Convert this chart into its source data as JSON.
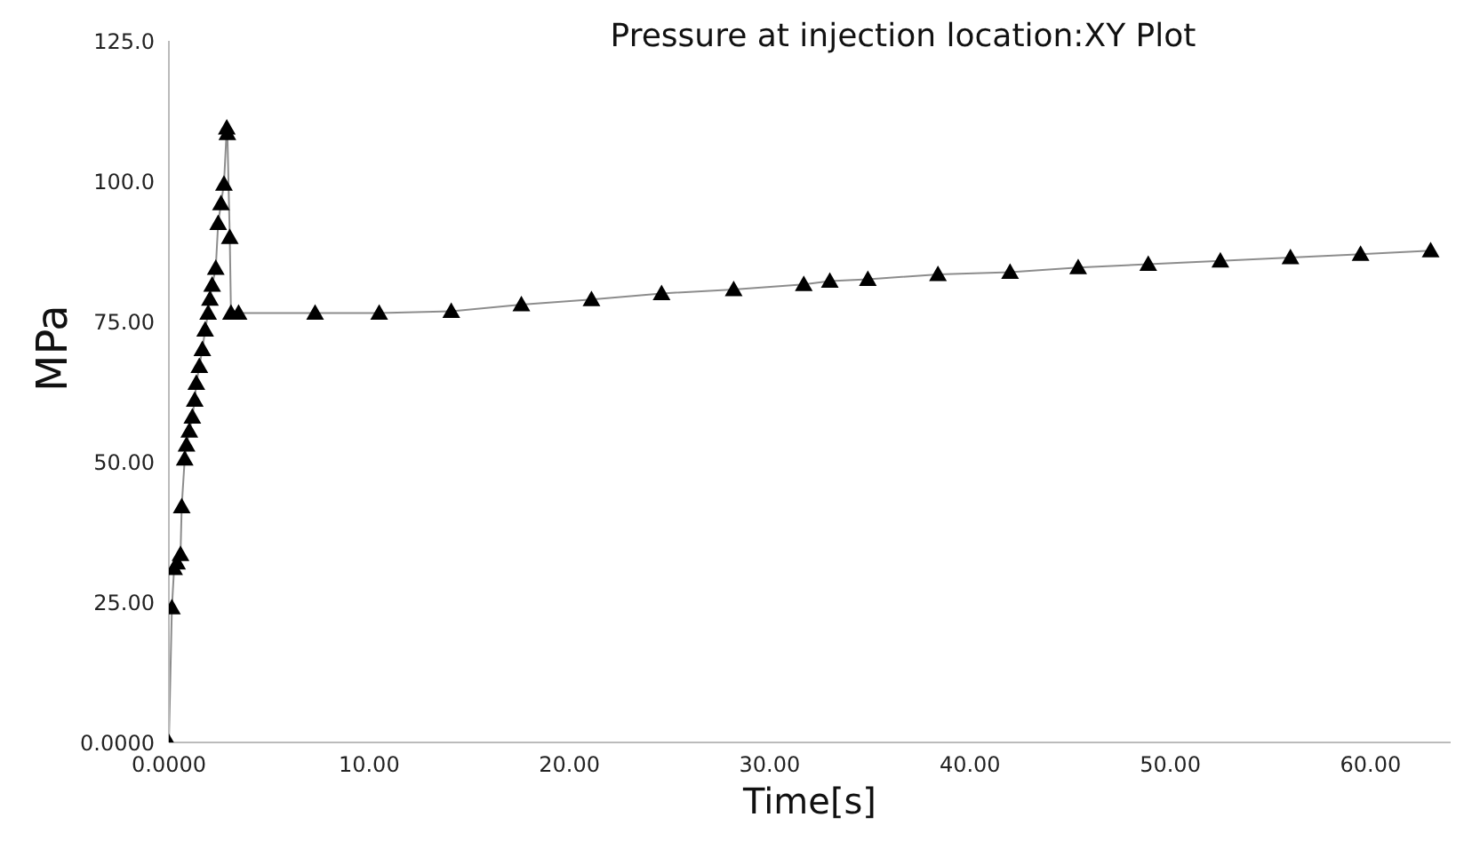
{
  "chart_data": {
    "type": "line",
    "title": "Pressure at injection location:XY Plot",
    "xlabel": "Time[s]",
    "ylabel": "MPa",
    "x": [
      0,
      0.15,
      0.26,
      0.41,
      0.58,
      0.64,
      0.79,
      0.88,
      1.02,
      1.17,
      1.29,
      1.37,
      1.52,
      1.67,
      1.81,
      1.96,
      2.05,
      2.16,
      2.34,
      2.46,
      2.6,
      2.75,
      2.89,
      2.92,
      3.04,
      3.1,
      3.48,
      7.3,
      10.5,
      14.1,
      17.6,
      21.1,
      24.6,
      28.2,
      31.7,
      33.0,
      34.9,
      38.4,
      42.0,
      45.4,
      48.9,
      52.5,
      56.0,
      59.5,
      63.0
    ],
    "series": [
      {
        "color": "#000000",
        "values": [
          0,
          24,
          31,
          32,
          33.5,
          42,
          50.5,
          53,
          55.5,
          58,
          61,
          64,
          67,
          70,
          73.5,
          76.5,
          79,
          81.5,
          84.5,
          92.5,
          96,
          99.5,
          109.5,
          108.5,
          90,
          76.5,
          76.5,
          76.5,
          76.5,
          76.8,
          78.0,
          78.9,
          80.0,
          80.7,
          81.6,
          82.2,
          82.5,
          83.4,
          83.8,
          84.6,
          85.2,
          85.8,
          86.4,
          87.0,
          87.6
        ]
      }
    ],
    "xlim": [
      0,
      64
    ],
    "ylim": [
      0,
      125
    ],
    "xticks": [
      {
        "value": 0,
        "label": "0.0000"
      },
      {
        "value": 10,
        "label": "10.00"
      },
      {
        "value": 20,
        "label": "20.00"
      },
      {
        "value": 30,
        "label": "30.00"
      },
      {
        "value": 40,
        "label": "40.00"
      },
      {
        "value": 50,
        "label": "50.00"
      },
      {
        "value": 60,
        "label": "60.00"
      }
    ],
    "yticks": [
      {
        "value": 0,
        "label": "0.0000"
      },
      {
        "value": 25,
        "label": "25.00"
      },
      {
        "value": 50,
        "label": "50.00"
      },
      {
        "value": 75,
        "label": "75.00"
      },
      {
        "value": 100,
        "label": "100.0"
      },
      {
        "value": 125,
        "label": "125.0"
      }
    ],
    "grid": false,
    "legend": false,
    "marker": "triangle",
    "line_style": "solid"
  }
}
